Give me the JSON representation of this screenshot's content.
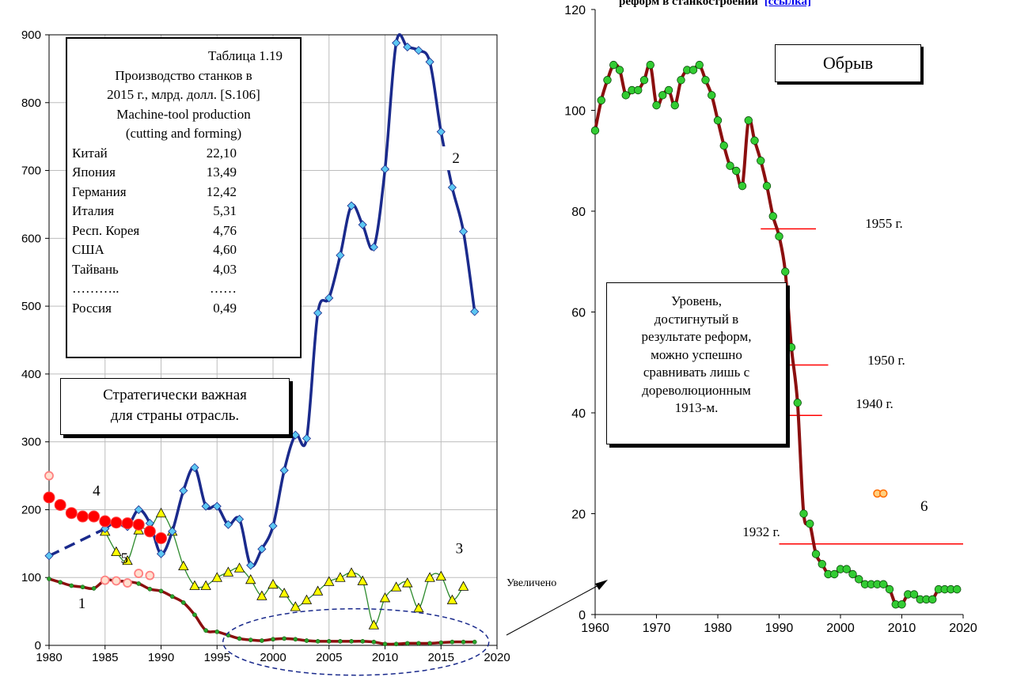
{
  "header": {
    "text": "реформ в станкостроении",
    "link": "[ссылка]"
  },
  "chart_data": [
    {
      "type": "line",
      "title": "",
      "xlabel": "",
      "ylabel": "",
      "xlim": [
        1980,
        2020
      ],
      "ylim": [
        0,
        900
      ],
      "x_ticks": [
        "1980",
        "1985",
        "1990",
        "1995",
        "2000",
        "2005",
        "2010",
        "2015",
        "2020"
      ],
      "y_ticks": [
        "0",
        "100",
        "200",
        "300",
        "400",
        "500",
        "600",
        "700",
        "800",
        "900"
      ],
      "grid": true,
      "series": [
        {
          "name": "1",
          "color": "#8b0f0f",
          "x": [
            1980,
            1981,
            1982,
            1983,
            1984,
            1985,
            1986,
            1987,
            1988,
            1989,
            1990,
            1991,
            1992,
            1993,
            1994,
            1995,
            1996,
            1997,
            1998,
            1999,
            2000,
            2001,
            2002,
            2003,
            2004,
            2005,
            2006,
            2007,
            2008,
            2009,
            2010,
            2011,
            2012,
            2013,
            2014,
            2015,
            2016,
            2017,
            2018
          ],
          "values": [
            98,
            93,
            88,
            86,
            84,
            96,
            95,
            94,
            91,
            83,
            80,
            72,
            63,
            45,
            22,
            20,
            15,
            10,
            8,
            7,
            9,
            10,
            9,
            7,
            6,
            6,
            6,
            6,
            6,
            5,
            2,
            2,
            3,
            3,
            3,
            4,
            5,
            5,
            5
          ]
        },
        {
          "name": "2",
          "color": "#1a2a8c",
          "x": [
            1980,
            1985,
            1986,
            1987,
            1988,
            1989,
            1990,
            1991,
            1992,
            1993,
            1994,
            1995,
            1996,
            1997,
            1998,
            1999,
            2000,
            2001,
            2002,
            2003,
            2004,
            2005,
            2006,
            2007,
            2008,
            2009,
            2010,
            2011,
            2012,
            2013,
            2014,
            2015,
            2016,
            2017,
            2018
          ],
          "values": [
            132,
            172,
            182,
            175,
            200,
            180,
            135,
            168,
            228,
            262,
            205,
            205,
            178,
            186,
            118,
            142,
            176,
            258,
            310,
            305,
            490,
            512,
            575,
            648,
            620,
            587,
            702,
            888,
            882,
            877,
            860,
            757,
            675,
            610,
            492
          ]
        },
        {
          "name": "3",
          "color": "#2e8b2e",
          "x": [
            1985,
            1986,
            1987,
            1988,
            1989,
            1990,
            1991,
            1992,
            1993,
            1994,
            1995,
            1996,
            1997,
            1998,
            1999,
            2000,
            2001,
            2002,
            2003,
            2004,
            2005,
            2006,
            2007,
            2008,
            2009,
            2010,
            2011,
            2012,
            2013,
            2014,
            2015,
            2016,
            2017
          ],
          "values": [
            168,
            138,
            125,
            170,
            172,
            195,
            168,
            117,
            88,
            88,
            100,
            108,
            114,
            97,
            73,
            90,
            77,
            57,
            67,
            80,
            94,
            100,
            107,
            95,
            30,
            70,
            86,
            92,
            55,
            100,
            102,
            67,
            87
          ]
        },
        {
          "name": "4",
          "color": "#ff0000",
          "x": [
            1980,
            1981,
            1982,
            1983,
            1984,
            1985,
            1986,
            1987,
            1988,
            1989,
            1990
          ],
          "values": [
            218,
            207,
            195,
            190,
            190,
            183,
            181,
            180,
            178,
            168,
            158
          ]
        },
        {
          "name": "5",
          "color": "#ff8080",
          "x": [
            1980,
            1985,
            1986,
            1987,
            1988,
            1989
          ],
          "values": [
            250,
            96,
            95,
            92,
            106,
            103
          ]
        }
      ],
      "annotations": [
        "1",
        "2",
        "3",
        "4",
        "5"
      ]
    },
    {
      "type": "line",
      "title": "",
      "xlabel": "",
      "ylabel": "",
      "xlim": [
        1960,
        2020
      ],
      "ylim": [
        0,
        120
      ],
      "x_ticks": [
        "1960",
        "1970",
        "1980",
        "1990",
        "2000",
        "2010",
        "2020"
      ],
      "y_ticks": [
        "0",
        "20",
        "40",
        "60",
        "80",
        "100",
        "120"
      ],
      "grid": false,
      "series": [
        {
          "name": "",
          "color": "#8b0f0f",
          "x": [
            1960,
            1961,
            1962,
            1963,
            1964,
            1965,
            1966,
            1967,
            1968,
            1969,
            1970,
            1971,
            1972,
            1973,
            1974,
            1975,
            1976,
            1977,
            1978,
            1979,
            1980,
            1981,
            1982,
            1983,
            1984,
            1985,
            1986,
            1987,
            1988,
            1989,
            1990,
            1991,
            1992,
            1993,
            1994,
            1995,
            1996,
            1997,
            1998,
            1999,
            2000,
            2001,
            2002,
            2003,
            2004,
            2005,
            2006,
            2007,
            2008,
            2009,
            2010,
            2011,
            2012,
            2013,
            2014,
            2015,
            2016,
            2017,
            2018,
            2019
          ],
          "values": [
            96,
            102,
            106,
            109,
            108,
            103,
            104,
            104,
            106,
            109,
            101,
            103,
            104,
            101,
            106,
            108,
            108,
            109,
            106,
            103,
            98,
            93,
            89,
            88,
            85,
            98,
            94,
            90,
            85,
            79,
            75,
            68,
            53,
            42,
            20,
            18,
            12,
            10,
            8,
            8,
            9,
            9,
            8,
            7,
            6,
            6,
            6,
            6,
            5,
            2,
            2,
            4,
            4,
            3,
            3,
            3,
            5,
            5,
            5,
            5
          ]
        },
        {
          "name": "6",
          "color": "#ffa500",
          "x": [
            2006,
            2007
          ],
          "values": [
            24,
            24
          ]
        }
      ],
      "ref_lines": [
        {
          "label": "1955 г.",
          "value": 76.5,
          "from": 1987,
          "to": 1996
        },
        {
          "label": "1950 г.",
          "value": 49.5,
          "from": 1990,
          "to": 1998
        },
        {
          "label": "1940 г.",
          "value": 39.5,
          "from": 1990,
          "to": 1997
        },
        {
          "label": "1932 г.",
          "value": 14,
          "from": 1990,
          "to": 2020
        }
      ]
    }
  ],
  "table_box": {
    "header_lines": [
      "Таблица 1.19",
      "Производство станков в",
      "2015 г., млрд. долл. [S.106]",
      "Machine-tool production",
      "(cutting and forming)"
    ],
    "rows": [
      {
        "country": "Китай",
        "value": "22,10"
      },
      {
        "country": "Япония",
        "value": "13,49"
      },
      {
        "country": "Германия",
        "value": "12,42"
      },
      {
        "country": "Италия",
        "value": "5,31"
      },
      {
        "country": "Респ. Корея",
        "value": "4,76"
      },
      {
        "country": "США",
        "value": "4,60"
      },
      {
        "country": "Тайвань",
        "value": "4,03"
      },
      {
        "country": "………..",
        "value": "……"
      },
      {
        "country": "Россия",
        "value": "0,49"
      }
    ]
  },
  "strategic_box": {
    "lines": [
      "Стратегически важная",
      "для страны отрасль."
    ]
  },
  "cliff_box": {
    "text": "Обрыв"
  },
  "level_box": {
    "lines": [
      "Уровень,",
      "достигнутый в",
      "результате реформ,",
      "можно успешно",
      "сравнивать лишь с",
      "дореволюционным",
      "1913-м."
    ]
  },
  "zoom_label": "Увеличено",
  "series_label_6": "6",
  "colors": {
    "line1": "#8b0f0f",
    "line2": "#1a2a8c",
    "marker2": "#5cc7f2",
    "line3": "#2e8b2e",
    "marker3": "#ffff00",
    "line4": "#ff0000",
    "marker5": "#ff8080",
    "marker_green": "#33cc33",
    "ref_line": "#ff0000"
  }
}
